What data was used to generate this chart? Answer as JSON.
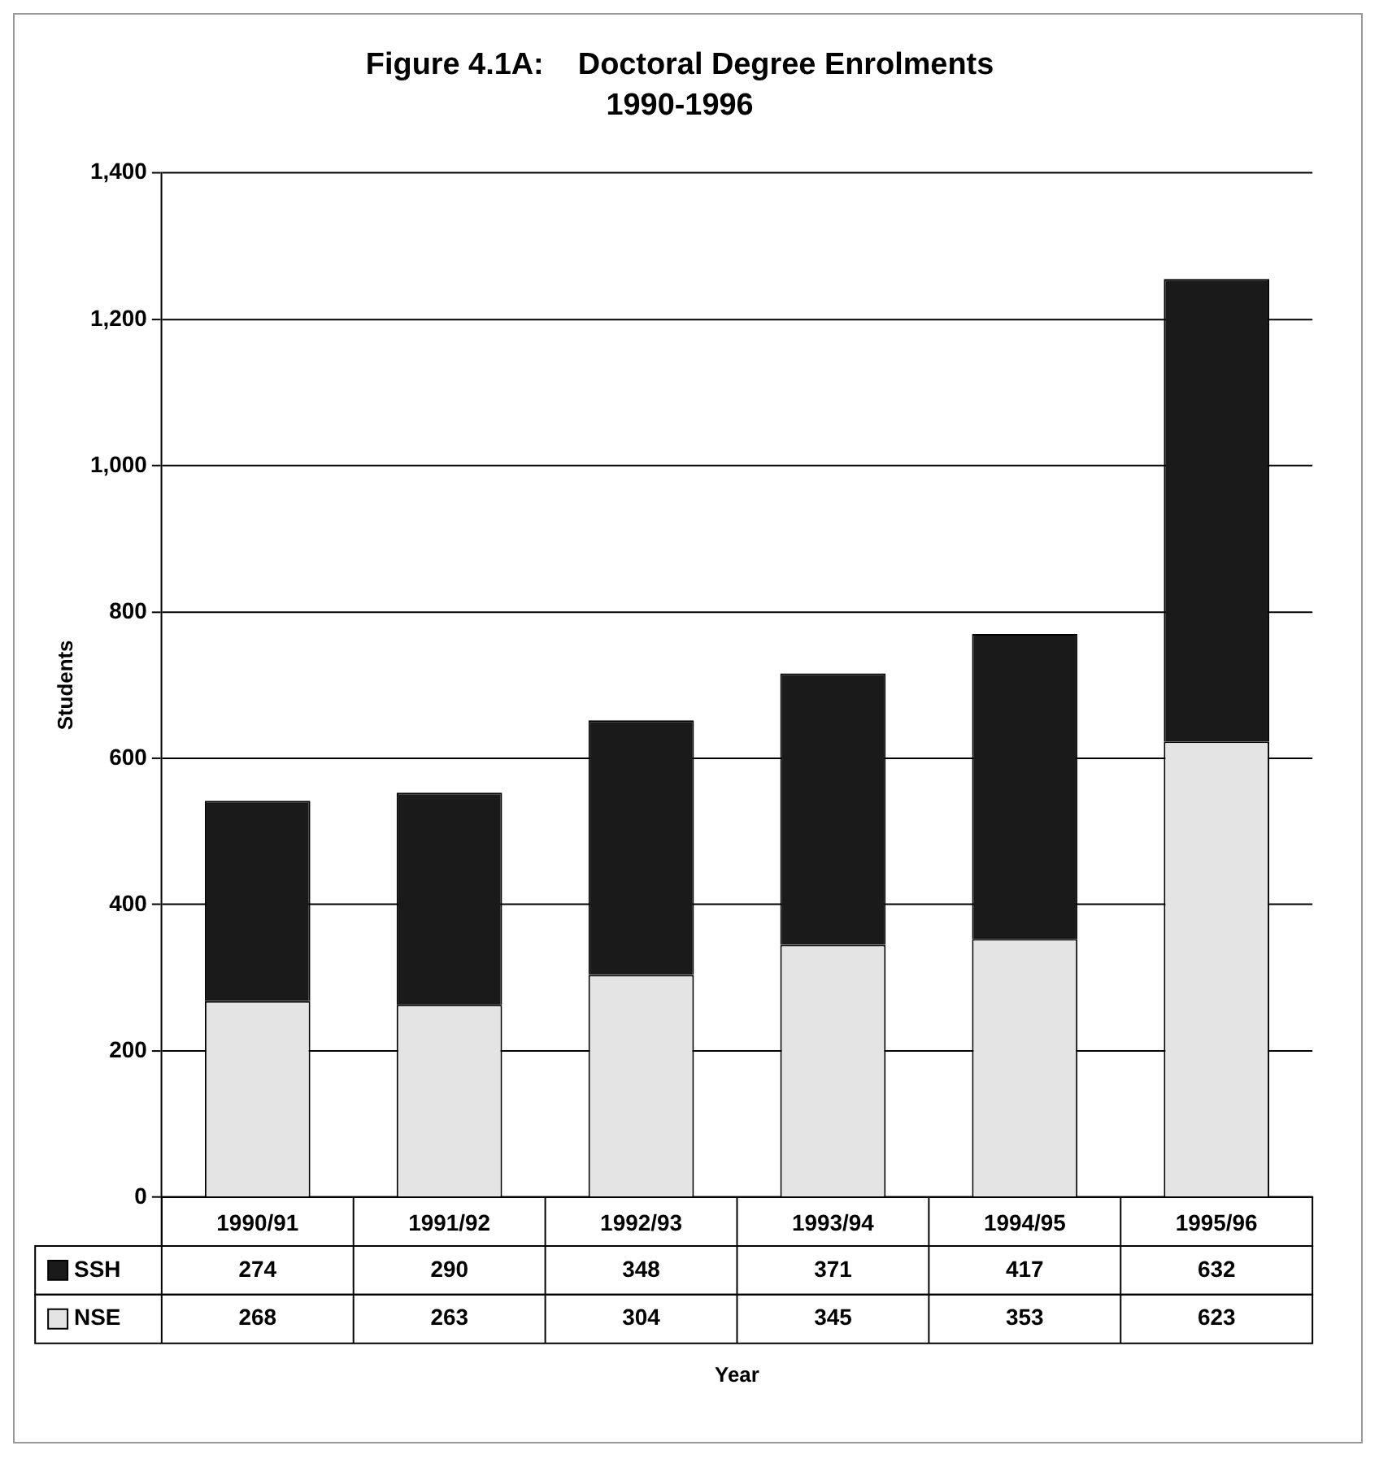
{
  "chart_data": {
    "type": "bar",
    "title": "Figure 4.1A:    Doctoral Degree Enrolments",
    "subtitle": "1990-1996",
    "annotations": [
      "Year"
    ],
    "ylabel": "Students",
    "categories": [
      "1990/91",
      "1991/92",
      "1992/93",
      "1993/94",
      "1994/95",
      "1995/96"
    ],
    "series": [
      {
        "name": "NSE",
        "color": "#e4e4e4",
        "values": [
          268,
          263,
          304,
          345,
          353,
          623
        ]
      },
      {
        "name": "SSH",
        "color": "#1a1a1a",
        "values": [
          274,
          290,
          348,
          371,
          417,
          632
        ]
      }
    ],
    "stacked": true,
    "ylim": [
      0,
      1400
    ],
    "yticks": [
      0,
      200,
      400,
      600,
      800,
      {
        "value": 1000,
        "label": "1,000"
      },
      {
        "value": 1200,
        "label": "1,200"
      },
      {
        "value": 1400,
        "label": "1,400"
      }
    ],
    "grid": "y",
    "legend": "bottom",
    "data_labels": true
  }
}
